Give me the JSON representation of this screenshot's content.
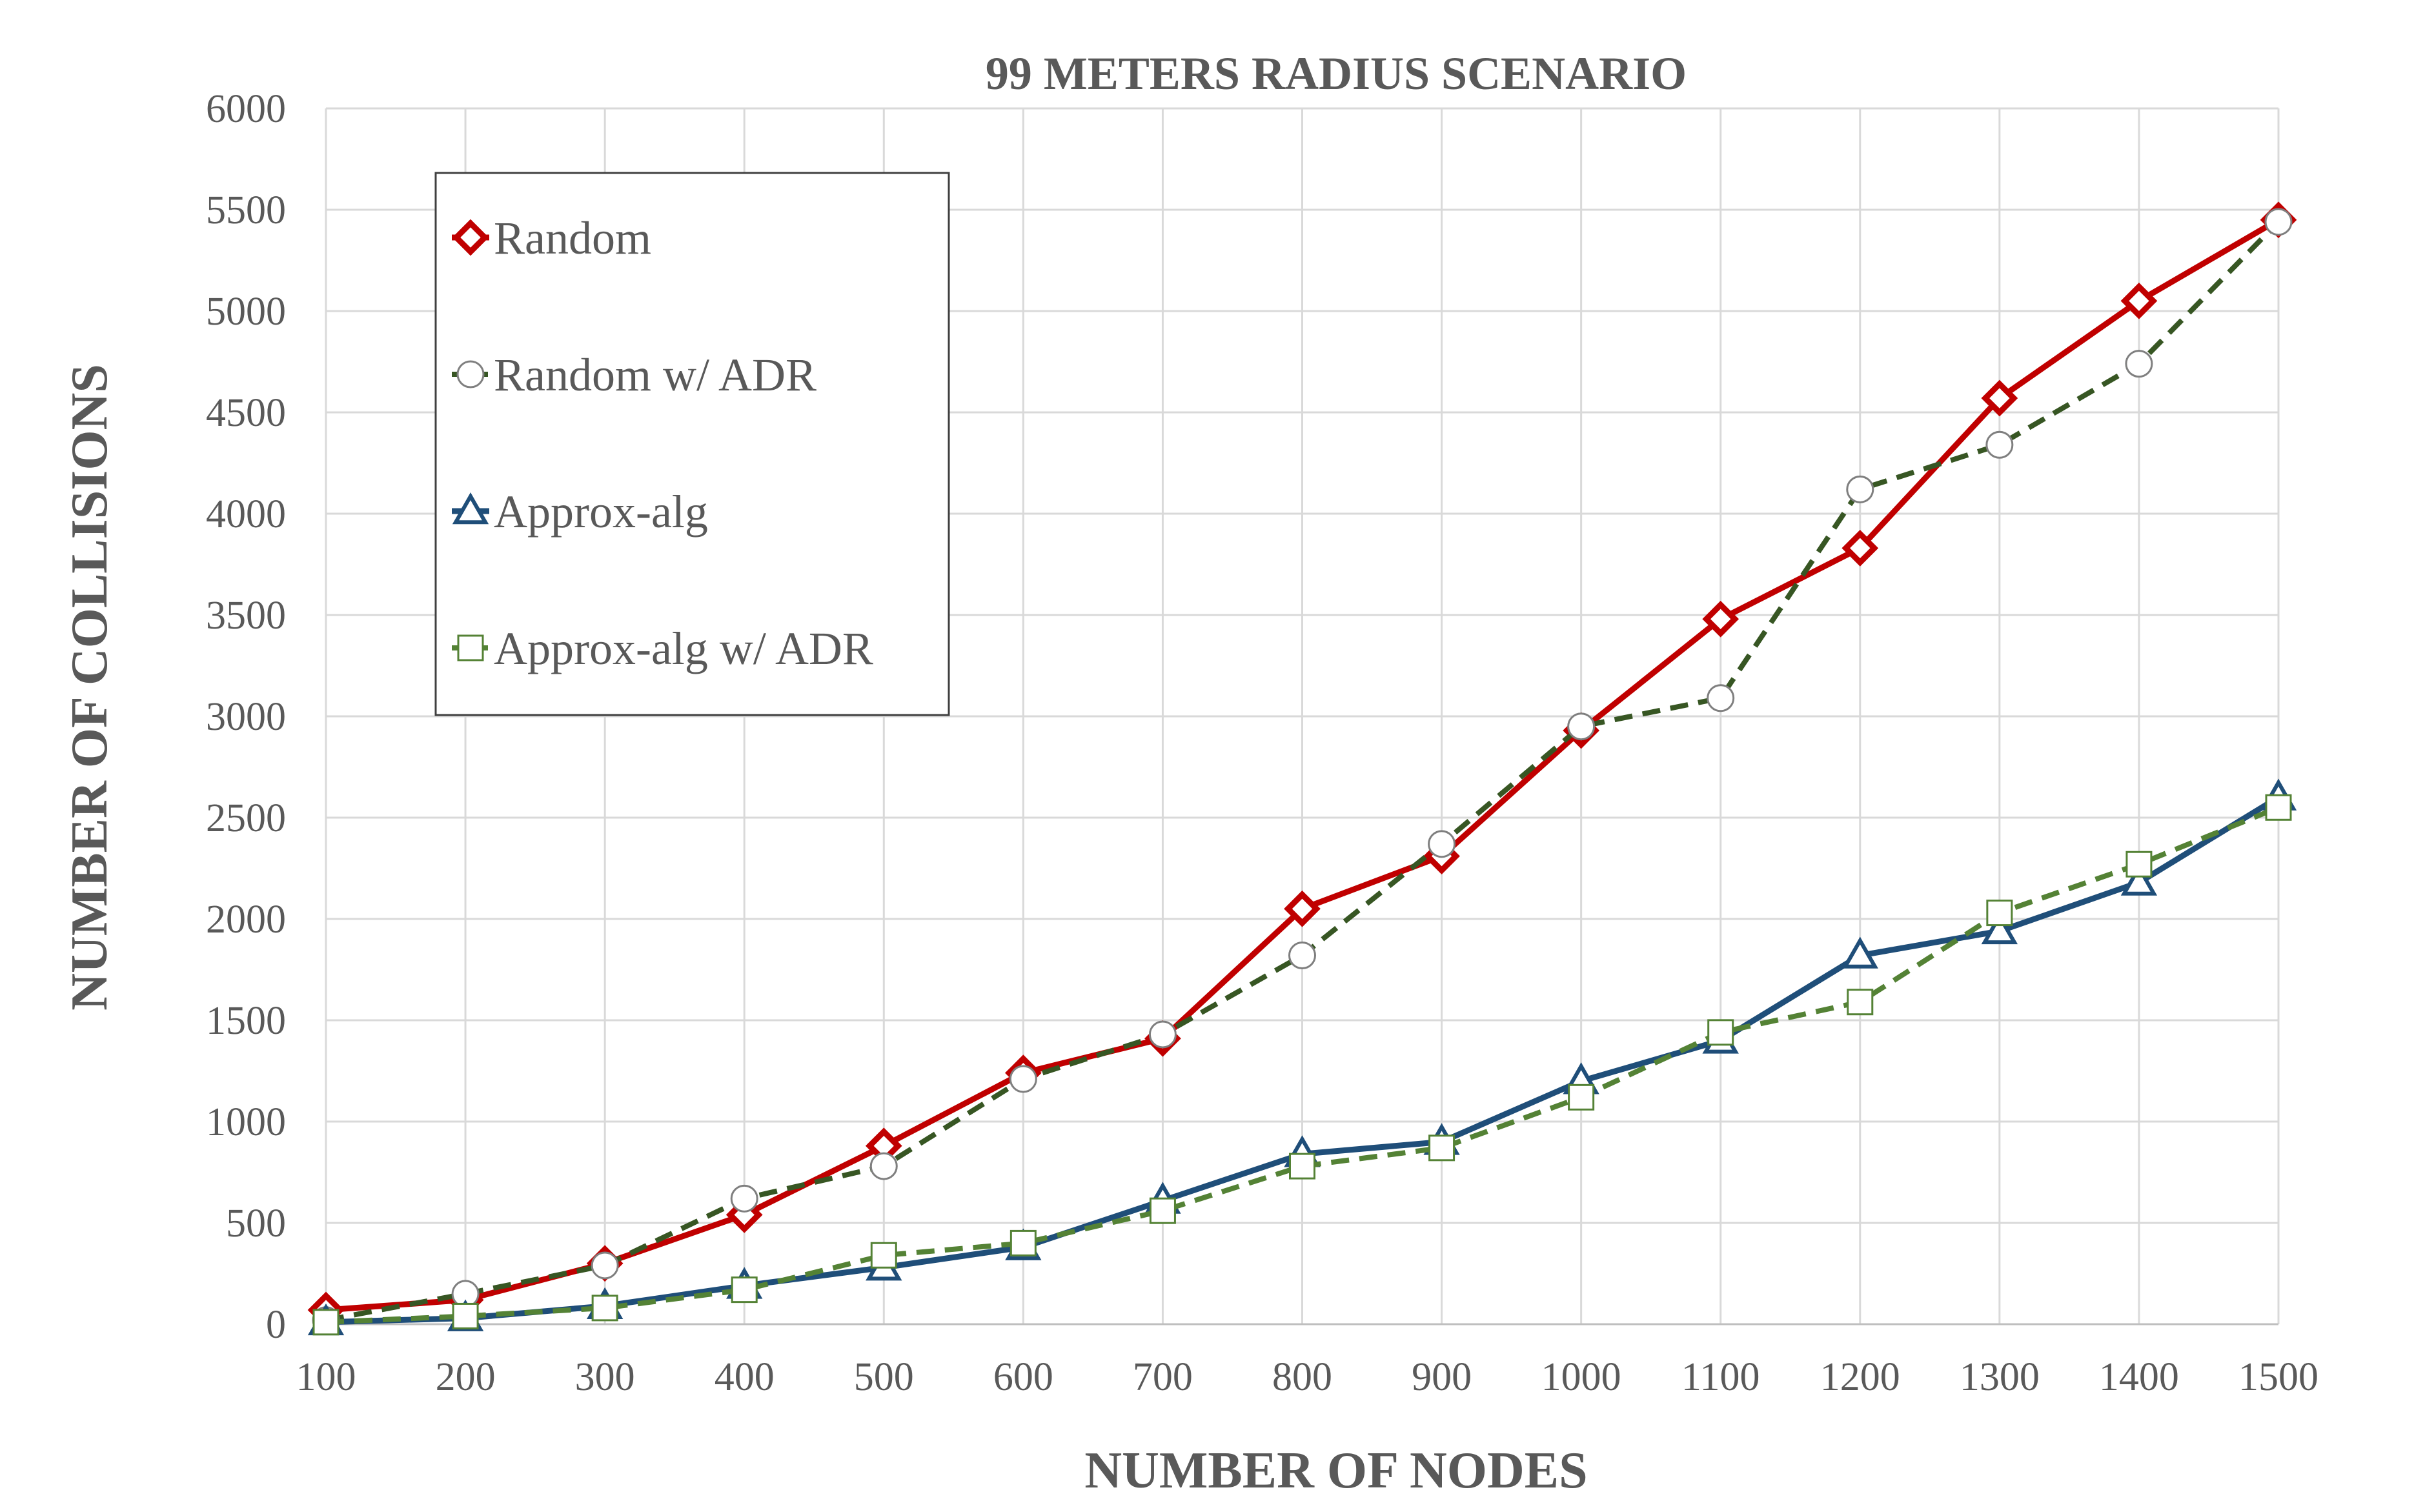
{
  "chart_data": {
    "type": "line",
    "title": "99 METERS RADIUS SCENARIO",
    "xlabel": "NUMBER OF NODES",
    "ylabel": "NUMBER OF COLLISIONS",
    "x": [
      100,
      200,
      300,
      400,
      500,
      600,
      700,
      800,
      900,
      1000,
      1100,
      1200,
      1300,
      1400,
      1500
    ],
    "xlim": [
      100,
      1500
    ],
    "ylim": [
      0,
      6000
    ],
    "yticks": [
      0,
      500,
      1000,
      1500,
      2000,
      2500,
      3000,
      3500,
      4000,
      4500,
      5000,
      5500,
      6000
    ],
    "grid": true,
    "legend_position": "top-left",
    "series": [
      {
        "name": "Random",
        "color": "#c00000",
        "line": "solid",
        "marker": "diamond",
        "values": [
          70,
          120,
          300,
          540,
          880,
          1240,
          1410,
          2050,
          2310,
          2930,
          3480,
          3830,
          4570,
          5050,
          5450
        ]
      },
      {
        "name": "Random w/ ADR",
        "color": "#375623",
        "line": "dashed",
        "marker": "circle",
        "values": [
          20,
          150,
          290,
          620,
          780,
          1210,
          1430,
          1820,
          2370,
          2950,
          3090,
          4120,
          4340,
          4740,
          5440
        ]
      },
      {
        "name": "Approx-alg",
        "color": "#1f4e79",
        "line": "solid",
        "marker": "triangle",
        "values": [
          10,
          30,
          90,
          190,
          280,
          380,
          610,
          840,
          900,
          1200,
          1400,
          1820,
          1940,
          2180,
          2600
        ]
      },
      {
        "name": "Approx-alg w/ ADR",
        "color": "#548235",
        "line": "dashed",
        "marker": "square",
        "values": [
          10,
          40,
          80,
          170,
          340,
          400,
          560,
          780,
          870,
          1120,
          1440,
          1590,
          2030,
          2270,
          2550
        ]
      }
    ]
  }
}
